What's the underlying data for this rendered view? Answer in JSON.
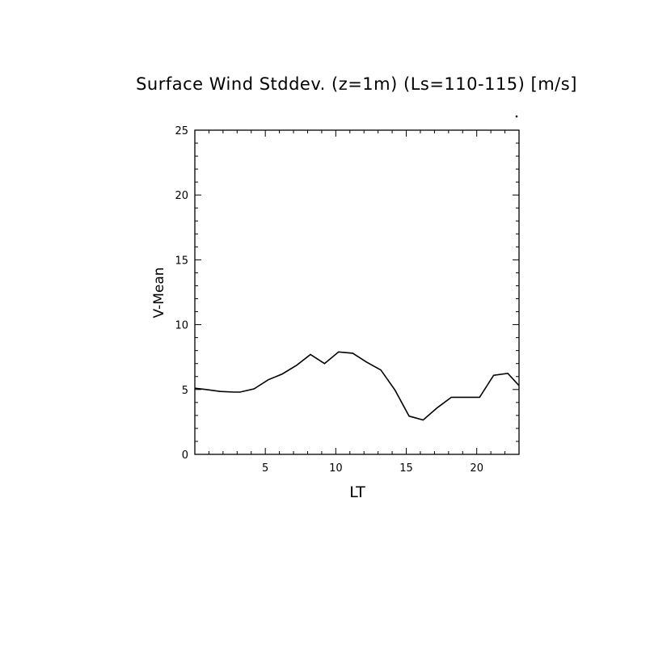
{
  "chart_data": {
    "type": "line",
    "title": "Surface Wind Stddev. (z=1m) (Ls=110-115) [m/s]",
    "xlabel": "LT",
    "ylabel": "V-Mean",
    "xlim": [
      0,
      23
    ],
    "ylim": [
      0,
      25
    ],
    "x_ticks": [
      5,
      10,
      15,
      20
    ],
    "y_ticks": [
      0,
      5,
      10,
      15,
      20,
      25
    ],
    "x_tick_labels": [
      "5",
      "10",
      "15",
      "20"
    ],
    "y_tick_labels": [
      "0",
      "5",
      "10",
      "15",
      "20",
      "25"
    ],
    "x_minor_step": 1,
    "y_minor_step": 1,
    "grid": false,
    "line_color": "#000000",
    "series": [
      {
        "x": [
          0,
          0.8,
          1.8,
          2.8,
          3.2,
          4.2,
          5.2,
          6.2,
          7.2,
          8.2,
          9.2,
          10.2,
          11.2,
          12.2,
          13.2,
          14.2,
          15.2,
          16.2,
          17.2,
          18.2,
          19.2,
          20.2,
          21.2,
          22.2,
          23
        ],
        "values": [
          5.1,
          5.0,
          4.85,
          4.8,
          4.8,
          5.05,
          5.75,
          6.2,
          6.85,
          7.7,
          7.0,
          7.9,
          7.8,
          7.1,
          6.5,
          4.95,
          2.95,
          2.65,
          3.6,
          4.4,
          4.4,
          4.4,
          6.1,
          6.25,
          5.3
        ]
      }
    ]
  }
}
